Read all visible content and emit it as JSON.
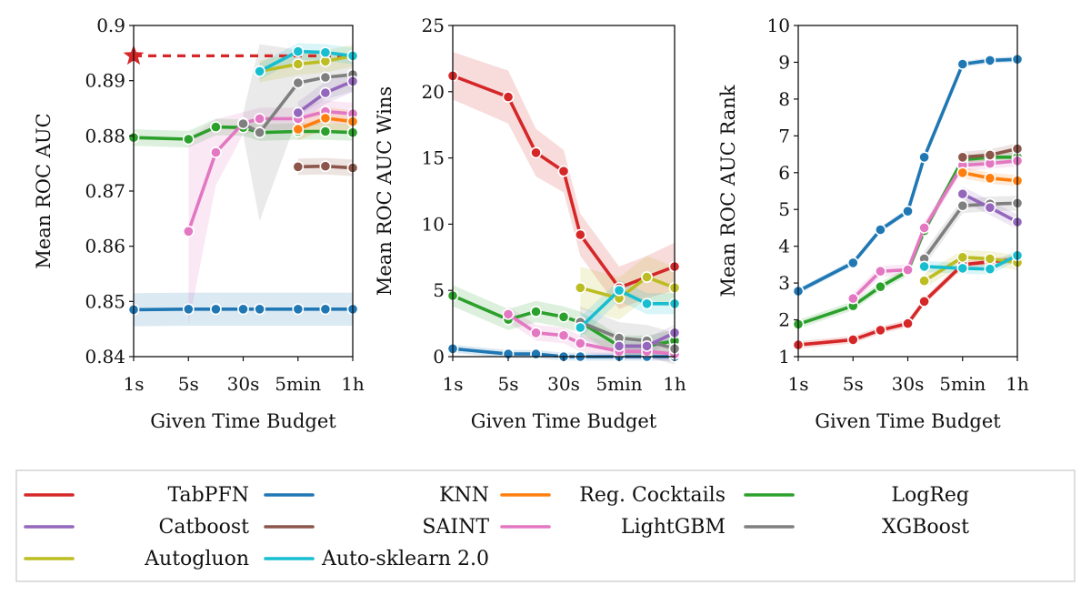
{
  "figure": {
    "xlabel": "Given Time Budget",
    "x_ticks": [
      "1s",
      "5s",
      "30s",
      "5min",
      "1h"
    ]
  },
  "colors": {
    "TabPFN": "#d62728",
    "Catboost": "#9467bd",
    "Autogluon": "#bcbd22",
    "KNN": "#1f77b4",
    "SAINT": "#8c564b",
    "Auto-sklearn 2.0": "#17becf",
    "Reg. Cocktails": "#ff7f0e",
    "LightGBM": "#e377c2",
    "LogReg": "#2ca02c",
    "XGBoost": "#7f7f7f"
  },
  "legend": {
    "entries": [
      "TabPFN",
      "KNN",
      "Reg. Cocktails",
      "LogReg",
      "Catboost",
      "SAINT",
      "LightGBM",
      "XGBoost",
      "Autogluon",
      "Auto-sklearn 2.0"
    ]
  },
  "chart_data": [
    {
      "type": "line",
      "ylabel": "Mean ROC AUC",
      "xlabel": "Given Time Budget",
      "x_ticks": [
        "1s",
        "5s",
        "30s",
        "5min",
        "1h"
      ],
      "x_tick_positions": [
        0,
        1,
        2,
        3,
        4
      ],
      "xlim": [
        0,
        4
      ],
      "ylim": [
        0.84,
        0.9
      ],
      "y_ticks": [
        0.84,
        0.85,
        0.86,
        0.87,
        0.88,
        0.89,
        0.9
      ],
      "y_tick_labels": [
        "0.84",
        "0.85",
        "0.86",
        "0.87",
        "0.88",
        "0.89",
        "0.9"
      ],
      "star": {
        "series": "TabPFN",
        "x": 0,
        "y": 0.8945
      },
      "series": [
        {
          "name": "KNN",
          "x": [
            0,
            1,
            1.5,
            2,
            2.3,
            3,
            3.5,
            4
          ],
          "y": [
            0.8485,
            0.8486,
            0.8486,
            0.8486,
            0.8486,
            0.8486,
            0.8486,
            0.8486
          ],
          "band": 0.003
        },
        {
          "name": "LogReg",
          "x": [
            0,
            1,
            1.5,
            2,
            2.3,
            3,
            3.5,
            4
          ],
          "y": [
            0.8797,
            0.8794,
            0.8816,
            0.8815,
            0.8806,
            0.8808,
            0.8808,
            0.8806
          ],
          "band": 0.0015
        },
        {
          "name": "LightGBM",
          "x": [
            1,
            1.5,
            2,
            2.3,
            3,
            3.5,
            4
          ],
          "y": [
            0.8627,
            0.877,
            0.8823,
            0.8831,
            0.8831,
            0.8844,
            0.884
          ],
          "band": [
            0.017,
            0.006,
            0.002,
            0.002,
            0.002,
            0.002,
            0.002
          ]
        },
        {
          "name": "XGBoost",
          "x": [
            2,
            2.3,
            3,
            3.5,
            4
          ],
          "y": [
            0.8822,
            0.8806,
            0.8896,
            0.8906,
            0.8911
          ],
          "band": [
            0.002,
            0.016,
            0.006,
            0.004,
            0.003
          ]
        },
        {
          "name": "Catboost",
          "x": [
            3,
            3.5,
            4
          ],
          "y": [
            0.8842,
            0.8878,
            0.8899
          ],
          "band": 0.002
        },
        {
          "name": "Reg. Cocktails",
          "x": [
            3,
            3.5,
            4
          ],
          "y": [
            0.8812,
            0.8832,
            0.8826
          ],
          "band": 0.002
        },
        {
          "name": "SAINT",
          "x": [
            3,
            3.5,
            4
          ],
          "y": [
            0.8744,
            0.8745,
            0.8742
          ],
          "band": 0.0015
        },
        {
          "name": "Autogluon",
          "x": [
            2.3,
            3,
            3.5,
            4
          ],
          "y": [
            0.8917,
            0.893,
            0.8935,
            0.8945
          ],
          "band": 0.002
        },
        {
          "name": "Auto-sklearn 2.0",
          "x": [
            2.3,
            3,
            3.5,
            4
          ],
          "y": [
            0.8917,
            0.8953,
            0.8951,
            0.8945
          ],
          "band": 0.0015
        }
      ]
    },
    {
      "type": "line",
      "ylabel": "Mean ROC AUC Wins",
      "xlabel": "Given Time Budget",
      "x_ticks": [
        "1s",
        "5s",
        "30s",
        "5min",
        "1h"
      ],
      "x_tick_positions": [
        0,
        1,
        2,
        3,
        4
      ],
      "xlim": [
        0,
        4
      ],
      "ylim": [
        0,
        25
      ],
      "y_ticks": [
        0,
        5,
        10,
        15,
        20,
        25
      ],
      "y_tick_labels": [
        "0",
        "5",
        "10",
        "15",
        "20",
        "25"
      ],
      "series": [
        {
          "name": "TabPFN",
          "x": [
            0,
            1,
            1.5,
            2,
            2.3,
            3,
            3.5,
            4
          ],
          "y": [
            21.2,
            19.6,
            15.4,
            14.0,
            9.2,
            5.2,
            6.0,
            6.8
          ],
          "band": [
            1.8,
            2.0,
            1.8,
            1.6,
            1.6,
            1.6,
            1.6,
            1.8
          ]
        },
        {
          "name": "LogReg",
          "x": [
            0,
            1,
            1.5,
            2,
            2.3,
            3,
            3.5,
            4
          ],
          "y": [
            4.6,
            2.8,
            3.4,
            3.0,
            2.6,
            0.8,
            0.8,
            1.2
          ],
          "band": 0.8
        },
        {
          "name": "KNN",
          "x": [
            0,
            1,
            1.5,
            2,
            2.3,
            3,
            3.5,
            4
          ],
          "y": [
            0.6,
            0.2,
            0.2,
            0.0,
            0.0,
            0.0,
            0.0,
            0.0
          ],
          "band": 0.3
        },
        {
          "name": "LightGBM",
          "x": [
            1,
            1.5,
            2,
            2.3,
            3,
            3.5,
            4
          ],
          "y": [
            3.2,
            1.8,
            1.6,
            1.0,
            0.4,
            0.4,
            0.2
          ],
          "band": 0.6
        },
        {
          "name": "XGBoost",
          "x": [
            2.3,
            3,
            3.5,
            4
          ],
          "y": [
            2.6,
            1.4,
            1.2,
            0.6
          ],
          "band": 1.2
        },
        {
          "name": "Catboost",
          "x": [
            3,
            3.5,
            4
          ],
          "y": [
            0.8,
            0.8,
            1.8
          ],
          "band": 0.6
        },
        {
          "name": "Autogluon",
          "x": [
            2.3,
            3,
            3.5,
            4
          ],
          "y": [
            5.2,
            4.4,
            6.0,
            5.2
          ],
          "band": 1.6
        },
        {
          "name": "Auto-sklearn 2.0",
          "x": [
            2.3,
            3,
            3.5,
            4
          ],
          "y": [
            2.2,
            5.0,
            4.0,
            4.0
          ],
          "band": 0.8
        }
      ]
    },
    {
      "type": "line",
      "ylabel": "Mean ROC AUC Rank",
      "xlabel": "Given Time Budget",
      "x_ticks": [
        "1s",
        "5s",
        "30s",
        "5min",
        "1h"
      ],
      "x_tick_positions": [
        0,
        1,
        2,
        3,
        4
      ],
      "xlim": [
        0,
        4
      ],
      "ylim": [
        1,
        10
      ],
      "y_ticks": [
        1,
        2,
        3,
        4,
        5,
        6,
        7,
        8,
        9,
        10
      ],
      "y_tick_labels": [
        "1",
        "2",
        "3",
        "4",
        "5",
        "6",
        "7",
        "8",
        "9",
        "10"
      ],
      "series": [
        {
          "name": "KNN",
          "x": [
            0,
            1,
            1.5,
            2,
            2.3,
            3,
            3.5,
            4
          ],
          "y": [
            2.78,
            3.55,
            4.45,
            4.95,
            6.42,
            8.95,
            9.05,
            9.08
          ],
          "band": 0.08
        },
        {
          "name": "LogReg",
          "x": [
            0,
            1,
            1.5,
            2,
            2.3,
            3,
            3.5,
            4
          ],
          "y": [
            1.88,
            2.38,
            2.9,
            3.32,
            4.42,
            6.35,
            6.42,
            6.42
          ],
          "band": 0.12
        },
        {
          "name": "TabPFN",
          "x": [
            0,
            1,
            1.5,
            2,
            2.3,
            3,
            3.5,
            4
          ],
          "y": [
            1.32,
            1.46,
            1.72,
            1.9,
            2.5,
            3.5,
            3.58,
            3.65
          ],
          "band": 0.1
        },
        {
          "name": "LightGBM",
          "x": [
            1,
            1.5,
            2,
            2.3,
            3,
            3.5,
            4
          ],
          "y": [
            2.58,
            3.32,
            3.36,
            4.5,
            6.2,
            6.25,
            6.32
          ],
          "band": 0.15
        },
        {
          "name": "XGBoost",
          "x": [
            2.3,
            3,
            3.5,
            4
          ],
          "y": [
            3.66,
            5.1,
            5.15,
            5.17
          ],
          "band": 0.2
        },
        {
          "name": "Catboost",
          "x": [
            3,
            3.5,
            4
          ],
          "y": [
            5.42,
            5.05,
            4.66
          ],
          "band": 0.2
        },
        {
          "name": "Reg. Cocktails",
          "x": [
            3,
            3.5,
            4
          ],
          "y": [
            6.0,
            5.85,
            5.78
          ],
          "band": 0.15
        },
        {
          "name": "SAINT",
          "x": [
            3,
            3.5,
            4
          ],
          "y": [
            6.42,
            6.48,
            6.65
          ],
          "band": 0.15
        },
        {
          "name": "Autogluon",
          "x": [
            2.3,
            3,
            3.5,
            4
          ],
          "y": [
            3.06,
            3.7,
            3.66,
            3.56
          ],
          "band": 0.2
        },
        {
          "name": "Auto-sklearn 2.0",
          "x": [
            2.3,
            3,
            3.5,
            4
          ],
          "y": [
            3.45,
            3.4,
            3.38,
            3.75
          ],
          "band": 0.15
        }
      ]
    }
  ]
}
